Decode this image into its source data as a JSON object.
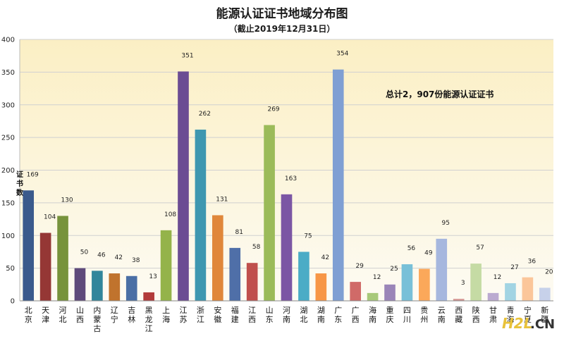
{
  "chart_data": {
    "type": "bar",
    "title": "能源认证证书地域分布图",
    "subtitle": "（截止2019年12月31日）",
    "ylabel": "证书数",
    "xlabel": "",
    "ylim": [
      0,
      400
    ],
    "yticks": [
      0,
      50,
      100,
      150,
      200,
      250,
      300,
      350,
      400
    ],
    "grid": true,
    "annotation": "总计2，907份能源认证证书",
    "categories": [
      "北京",
      "天津",
      "河北",
      "山西",
      "内蒙古",
      "辽宁",
      "吉林",
      "黑龙江",
      "上海",
      "江苏",
      "浙江",
      "安徽",
      "福建",
      "江西",
      "山东",
      "河南",
      "湖北",
      "湖南",
      "广东",
      "广西",
      "海南",
      "重庆",
      "四川",
      "贵州",
      "云南",
      "西藏",
      "陕西",
      "甘肃",
      "青海",
      "宁夏",
      "新疆"
    ],
    "values": [
      169,
      104,
      130,
      50,
      46,
      42,
      38,
      13,
      108,
      351,
      262,
      131,
      81,
      58,
      269,
      163,
      75,
      42,
      354,
      29,
      12,
      25,
      56,
      49,
      95,
      3,
      57,
      12,
      27,
      36,
      20
    ],
    "colors": [
      "#3a5a8c",
      "#953735",
      "#77933c",
      "#5f4a7a",
      "#31869b",
      "#c0732d",
      "#4a6fa5",
      "#b23b3b",
      "#94b34a",
      "#6b4c93",
      "#3e97b0",
      "#e0873a",
      "#4f6fa8",
      "#c0504d",
      "#9bbb59",
      "#7b56a4",
      "#4bacc6",
      "#f79646",
      "#7f9fd3",
      "#d06a68",
      "#a8c97a",
      "#9a85b8",
      "#78c0d8",
      "#fba85a",
      "#a6b7de",
      "#d69694",
      "#c5dba4",
      "#bbaad0",
      "#a2d4e3",
      "#fbc69a",
      "#c7d1ea"
    ]
  },
  "watermark": {
    "brand": "H2L",
    "suffix": ".CN"
  }
}
